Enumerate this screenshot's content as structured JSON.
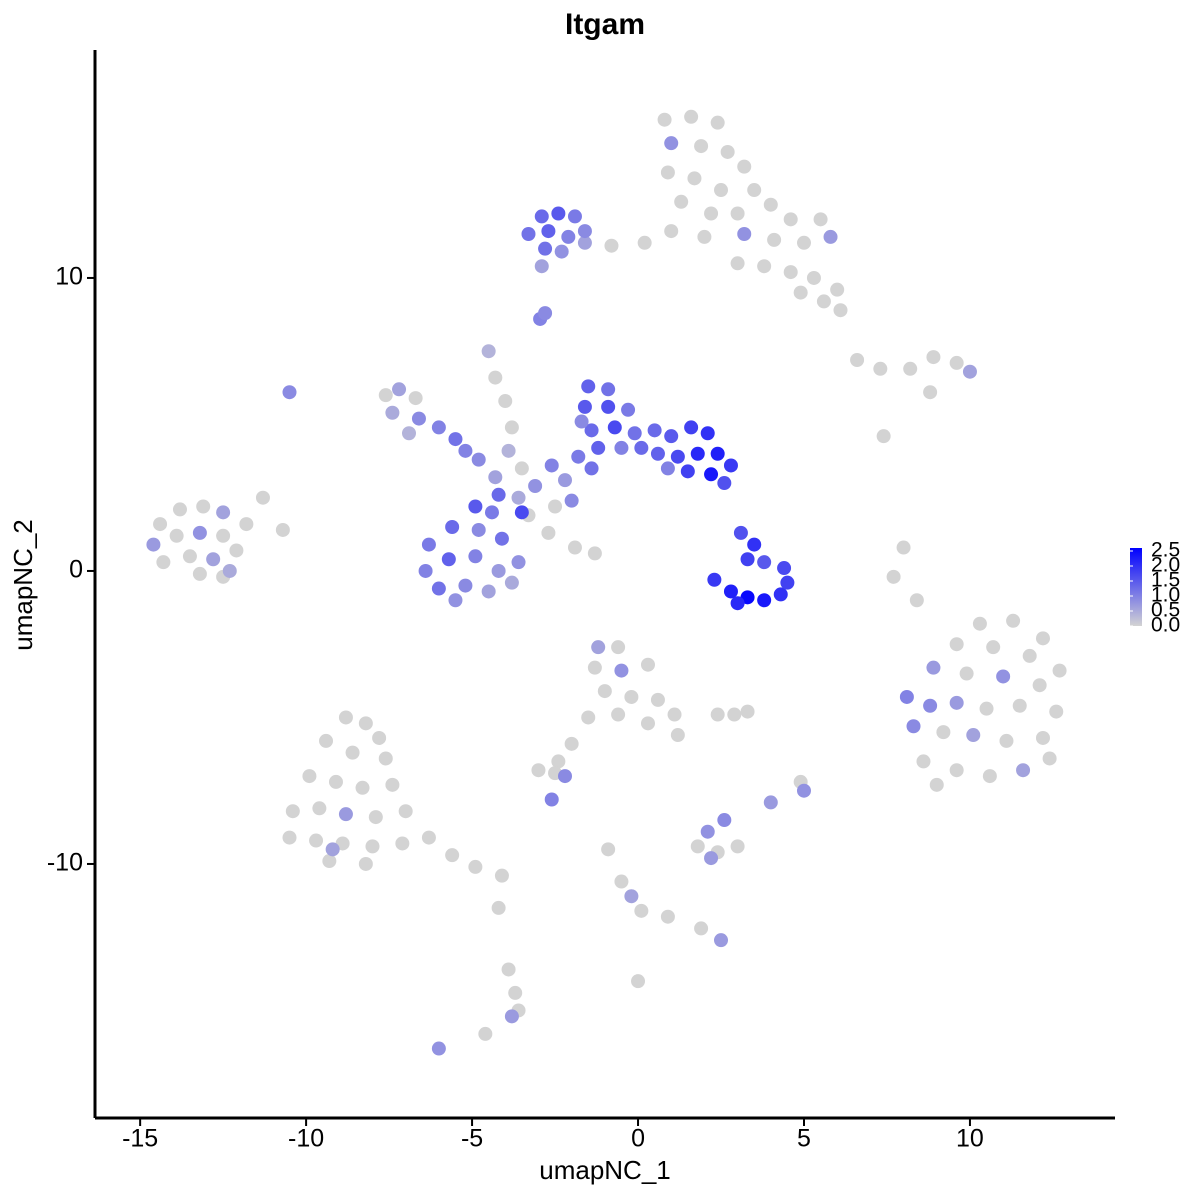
{
  "chart_data": {
    "type": "scatter",
    "title": "Itgam",
    "x_label": "umapNC_1",
    "y_label": "umapNC_2",
    "xlim": [
      -16.36,
      14.37
    ],
    "ylim": [
      -18.67,
      17.78
    ],
    "xticks": [
      -15,
      -10,
      -5,
      0,
      5,
      10
    ],
    "yticks": [
      -10,
      0,
      10
    ],
    "color_low": "#d3d3d3",
    "color_high": "#0000ff",
    "color_lim": [
      0,
      2.6
    ],
    "color_ticks": [
      {
        "value": 0,
        "label": "0.0"
      },
      0.5,
      {
        "value": 1,
        "label": "1.0"
      },
      1.5,
      {
        "value": 2,
        "label": "2.0"
      },
      2.5
    ],
    "x": [
      0.8,
      1.6,
      2.4,
      1.0,
      1.9,
      2.7,
      3.2,
      0.9,
      1.7,
      2.5,
      3.5,
      4.0,
      1.3,
      2.2,
      3.0,
      4.6,
      5.5,
      1.0,
      2.0,
      3.2,
      4.1,
      5.0,
      5.8,
      0.2,
      -0.8,
      -1.6,
      3.8,
      4.6,
      5.3,
      6.0,
      5.6,
      4.9,
      3.0,
      6.1,
      -3.3,
      -2.9,
      -2.4,
      -1.9,
      -2.7,
      -2.1,
      -1.6,
      -2.8,
      -2.3,
      -2.9,
      -2.95,
      -2.8,
      -6.3,
      -5.6,
      -4.8,
      -4.1,
      -3.6,
      -6.4,
      -5.7,
      -4.9,
      -4.2,
      -6.0,
      -5.2,
      -4.5,
      -3.8,
      -5.5,
      -4.9,
      -4.4,
      -7.6,
      -7.2,
      -6.7,
      -7.4,
      -6.6,
      -6.0,
      -5.5,
      -6.9,
      -5.2,
      -4.5,
      -4.3,
      -4.0,
      -3.8,
      -3.3,
      -2.7,
      -1.9,
      -1.3,
      -2.5,
      -4.8,
      -4.3,
      -3.9,
      -3.5,
      -3.1,
      -2.6,
      -2.2,
      -1.8,
      -3.6,
      -2.0,
      -1.4,
      -4.2,
      -1.5,
      -0.9,
      -1.6,
      -0.9,
      -0.3,
      -1.4,
      -0.7,
      -0.1,
      -1.2,
      -0.5,
      0.1,
      -1.7,
      0.5,
      1.0,
      1.6,
      2.1,
      0.6,
      1.2,
      1.8,
      2.4,
      2.8,
      1.5,
      2.2,
      0.9,
      2.6,
      3.1,
      3.5,
      3.3,
      3.8,
      4.4,
      2.3,
      2.8,
      3.3,
      3.8,
      4.3,
      4.5,
      3.0,
      -14.4,
      -13.8,
      -13.1,
      -12.5,
      -14.6,
      -13.9,
      -13.2,
      -12.5,
      -11.8,
      -11.3,
      -10.7,
      -14.3,
      -13.5,
      -12.8,
      -12.1,
      -13.2,
      -12.5,
      -12.3,
      -10.5,
      10.3,
      11.3,
      12.2,
      9.6,
      10.7,
      11.8,
      12.7,
      8.9,
      9.9,
      11.0,
      12.1,
      8.1,
      8.8,
      9.6,
      10.5,
      11.5,
      12.6,
      8.3,
      9.2,
      10.1,
      11.1,
      12.2,
      8.6,
      9.6,
      10.6,
      11.6,
      12.4,
      9.0,
      8.4,
      8.0,
      7.7,
      -8.8,
      -8.2,
      -7.8,
      -9.4,
      -8.6,
      -7.6,
      -9.9,
      -9.1,
      -8.3,
      -7.4,
      -10.4,
      -9.6,
      -8.8,
      -7.9,
      -7.0,
      -10.5,
      -9.7,
      -8.9,
      -8.0,
      -7.1,
      -6.3,
      -9.3,
      -8.2,
      -5.6,
      -4.9,
      -4.1,
      -9.2,
      -4.2,
      -3.9,
      -3.7,
      -3.6,
      -3.8,
      -6.0,
      -4.6,
      -1.2,
      -0.6,
      -1.3,
      -0.5,
      0.3,
      -1.0,
      -0.2,
      0.6,
      1.1,
      -0.6,
      0.3,
      1.2,
      -1.5,
      -2.0,
      -2.4,
      -3.0,
      -2.5,
      -2.2,
      -2.6,
      1.8,
      2.4,
      3.0,
      2.1,
      2.6,
      2.2,
      -0.9,
      -0.5,
      -0.2,
      0.1,
      0.9,
      1.9,
      2.5,
      0.0,
      6.6,
      7.3,
      8.2,
      8.9,
      9.6,
      10.0,
      8.8,
      7.4,
      4.9,
      5.0,
      2.9,
      3.3,
      2.4,
      4.0,
      -3.5
    ],
    "y": [
      15.4,
      15.5,
      15.3,
      14.6,
      14.5,
      14.3,
      13.8,
      13.6,
      13.4,
      13.0,
      13.0,
      12.5,
      12.6,
      12.2,
      12.2,
      12.0,
      12.0,
      11.6,
      11.4,
      11.5,
      11.3,
      11.2,
      11.4,
      11.2,
      11.1,
      11.2,
      10.4,
      10.2,
      10.0,
      9.6,
      9.2,
      9.5,
      10.5,
      8.9,
      11.5,
      12.1,
      12.2,
      12.1,
      11.6,
      11.4,
      11.6,
      11.0,
      10.9,
      10.4,
      8.6,
      8.8,
      0.9,
      1.5,
      1.4,
      1.1,
      0.3,
      0.0,
      0.4,
      0.5,
      0.0,
      -0.6,
      -0.5,
      -0.7,
      -0.4,
      -1.0,
      2.2,
      2.0,
      6.0,
      6.2,
      5.9,
      5.4,
      5.2,
      4.9,
      4.5,
      4.7,
      4.1,
      7.5,
      6.6,
      5.8,
      4.9,
      1.9,
      1.3,
      0.8,
      0.6,
      2.2,
      3.8,
      3.2,
      4.1,
      3.5,
      2.9,
      3.6,
      3.1,
      3.9,
      2.5,
      2.4,
      3.5,
      2.6,
      6.3,
      6.2,
      5.6,
      5.6,
      5.5,
      4.8,
      4.9,
      4.7,
      4.2,
      4.2,
      4.2,
      5.1,
      4.8,
      4.6,
      4.9,
      4.7,
      4.0,
      3.9,
      4.0,
      4.0,
      3.6,
      3.4,
      3.3,
      3.5,
      3.0,
      1.3,
      0.9,
      0.4,
      0.3,
      0.1,
      -0.3,
      -0.7,
      -0.9,
      -1.0,
      -0.8,
      -0.4,
      -1.1,
      1.6,
      2.1,
      2.2,
      2.0,
      0.9,
      1.2,
      1.3,
      1.2,
      1.6,
      2.5,
      1.4,
      0.3,
      0.5,
      0.4,
      0.7,
      -0.1,
      -0.2,
      0.0,
      6.1,
      -1.8,
      -1.7,
      -2.3,
      -2.5,
      -2.6,
      -2.9,
      -3.4,
      -3.3,
      -3.5,
      -3.6,
      -3.9,
      -4.3,
      -4.6,
      -4.5,
      -4.7,
      -4.6,
      -4.8,
      -5.3,
      -5.5,
      -5.6,
      -5.8,
      -5.7,
      -6.5,
      -6.8,
      -7.0,
      -6.8,
      -6.4,
      -7.3,
      -1.0,
      0.8,
      -0.2,
      -5.0,
      -5.2,
      -5.7,
      -5.8,
      -6.2,
      -6.4,
      -7.0,
      -7.2,
      -7.4,
      -7.3,
      -8.2,
      -8.1,
      -8.3,
      -8.4,
      -8.2,
      -9.1,
      -9.2,
      -9.3,
      -9.4,
      -9.3,
      -9.1,
      -9.9,
      -10.0,
      -9.7,
      -10.1,
      -10.4,
      -9.5,
      -11.5,
      -13.6,
      -14.4,
      -15.0,
      -15.2,
      -16.3,
      -15.8,
      -2.6,
      -2.6,
      -3.3,
      -3.4,
      -3.2,
      -4.1,
      -4.3,
      -4.4,
      -4.9,
      -4.9,
      -5.2,
      -5.6,
      -5.0,
      -5.9,
      -6.5,
      -6.8,
      -6.9,
      -7.0,
      -7.8,
      -9.4,
      -9.6,
      -9.4,
      -8.9,
      -8.5,
      -9.8,
      -9.5,
      -10.6,
      -11.1,
      -11.6,
      -11.8,
      -12.2,
      -12.6,
      -14.0,
      7.2,
      6.9,
      6.9,
      7.3,
      7.1,
      6.8,
      6.1,
      4.6,
      -7.2,
      -7.5,
      -4.9,
      -4.8,
      -4.9,
      -7.9,
      2.0
    ],
    "values": [
      0,
      0,
      0,
      0.8,
      0,
      0,
      0,
      0,
      0,
      0,
      0,
      0,
      0,
      0,
      0,
      0,
      0,
      0,
      0,
      0.8,
      0,
      0,
      0.7,
      0,
      0,
      0.6,
      0,
      0,
      0,
      0,
      0,
      0,
      0,
      0,
      1.2,
      1.3,
      1.5,
      1.1,
      1.4,
      1.0,
      0.9,
      1.2,
      0.8,
      0.6,
      1.0,
      0.9,
      1.1,
      1.3,
      0.9,
      1.2,
      0.8,
      1.0,
      1.4,
      1.0,
      0.7,
      1.2,
      0.9,
      0.6,
      0.5,
      0.8,
      1.5,
      1.1,
      0,
      0.6,
      0,
      0.5,
      0.9,
      1.0,
      1.2,
      0.4,
      1.0,
      0.4,
      0,
      0,
      0,
      0,
      0,
      0,
      0,
      0,
      0.9,
      0.6,
      0.4,
      0,
      0.8,
      1.0,
      0.7,
      1.1,
      0.5,
      0.9,
      1.2,
      1.3,
      1.4,
      1.2,
      1.5,
      1.6,
      1.1,
      1.3,
      1.7,
      1.2,
      1.4,
      1.0,
      1.3,
      0.9,
      1.3,
      1.5,
      1.8,
      2.0,
      1.4,
      1.7,
      2.1,
      2.2,
      1.9,
      1.8,
      2.3,
      1.0,
      1.6,
      1.6,
      2.0,
      1.8,
      1.5,
      1.7,
      1.9,
      2.2,
      2.5,
      2.3,
      2.0,
      1.8,
      2.1,
      0,
      0,
      0,
      0.6,
      0.7,
      0,
      0.8,
      0,
      0,
      0,
      0,
      0,
      0,
      0.6,
      0,
      0,
      0,
      0.5,
      0.9,
      0,
      0,
      0,
      0,
      0,
      0,
      0,
      0.7,
      0,
      0.8,
      0,
      1.0,
      0.9,
      0.7,
      0,
      0,
      0,
      0.9,
      0,
      0.6,
      0,
      0,
      0,
      0,
      0,
      0.6,
      0,
      0,
      0,
      0,
      0,
      0,
      0,
      0,
      0,
      0,
      0,
      0,
      0,
      0,
      0,
      0,
      0,
      0.7,
      0,
      0,
      0,
      0,
      0,
      0,
      0,
      0,
      0,
      0,
      0,
      0,
      0,
      0.6,
      0,
      0,
      0,
      0,
      0.7,
      0.8,
      0,
      0.6,
      0,
      0,
      0.8,
      0,
      0,
      0,
      0,
      0,
      0,
      0,
      0,
      0,
      0,
      0,
      0,
      0,
      0.9,
      1.0,
      0,
      0,
      0,
      0.8,
      0.9,
      0.7,
      0,
      0,
      0.6,
      0,
      0,
      0,
      0.7,
      0,
      0,
      0,
      0,
      0,
      0,
      0.6,
      0,
      0,
      0,
      0.8,
      0,
      0,
      0,
      0.7,
      1.7
    ]
  }
}
